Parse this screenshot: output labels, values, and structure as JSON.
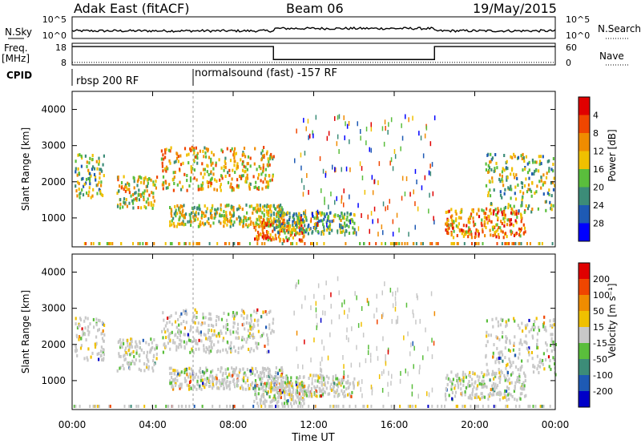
{
  "header": {
    "station": "Adak East (fitACF)",
    "beam": "Beam 06",
    "date": "19/May/2015"
  },
  "chart_data": [
    {
      "type": "line",
      "name": "noise-panel",
      "left_label": "N.Sky",
      "right_label": "N.Search",
      "left_ticks": [
        "10^5",
        "10^0"
      ],
      "right_ticks": [
        "10^5",
        "10^0"
      ]
    },
    {
      "type": "line",
      "name": "frequency-panel",
      "left_label_line1": "Freq.",
      "left_label_line2": "[MHz]",
      "left_ticks": [
        "18",
        "8"
      ],
      "right_label": "Nave",
      "right_ticks": [
        "60",
        "0"
      ],
      "freq_steps": [
        {
          "from": 0,
          "to": 10,
          "mhz": 16.5
        },
        {
          "from": 10,
          "to": 18,
          "mhz": 10.5
        },
        {
          "from": 18,
          "to": 24,
          "mhz": 16.5
        }
      ],
      "nave_level": 7
    },
    {
      "type": "table",
      "name": "cpid-panel",
      "label": "CPID",
      "segments": [
        {
          "start_hour": 0,
          "text": "rbsp 200 RF"
        },
        {
          "start_hour": 6,
          "text": "normalsound (fast) -157 RF"
        }
      ]
    },
    {
      "type": "heatmap",
      "name": "power-panel",
      "ylabel": "Slant Range [km]",
      "yticks": [
        1000,
        2000,
        3000,
        4000
      ],
      "ylim": [
        200,
        4500
      ],
      "xlim": [
        0,
        24
      ],
      "colorbar_label": "Power [dB]",
      "colorbar_ticks": [
        "4",
        "8",
        "12",
        "16",
        "20",
        "24",
        "28"
      ],
      "colors": [
        "#0000ff",
        "#1e5ab4",
        "#3c8c78",
        "#5abe3c",
        "#f0c000",
        "#f08c00",
        "#f04600",
        "#e00000"
      ],
      "echo_regions": [
        {
          "t0": 0.1,
          "t1": 1.6,
          "r0": 1600,
          "r1": 2800,
          "level": 0.45
        },
        {
          "t0": 2.2,
          "t1": 4.2,
          "r0": 1300,
          "r1": 2200,
          "level": 0.55
        },
        {
          "t0": 4.4,
          "t1": 10.0,
          "r0": 1800,
          "r1": 3000,
          "level": 0.6
        },
        {
          "t0": 4.8,
          "t1": 10.5,
          "r0": 800,
          "r1": 1400,
          "level": 0.5
        },
        {
          "t0": 9.0,
          "t1": 11.5,
          "r0": 400,
          "r1": 1000,
          "level": 0.7
        },
        {
          "t0": 10.0,
          "t1": 14.0,
          "r0": 600,
          "r1": 1200,
          "level": 0.4
        },
        {
          "t0": 18.5,
          "t1": 22.5,
          "r0": 500,
          "r1": 1300,
          "level": 0.7
        },
        {
          "t0": 20.5,
          "t1": 24.0,
          "r0": 1200,
          "r1": 2800,
          "level": 0.45
        }
      ]
    },
    {
      "type": "heatmap",
      "name": "velocity-panel",
      "ylabel": "Slant Range [km]",
      "yticks": [
        1000,
        2000,
        3000,
        4000
      ],
      "ylim": [
        200,
        4500
      ],
      "xlim": [
        0,
        24
      ],
      "colorbar_label": "Velocity [m s⁻¹]",
      "colorbar_ticks": [
        "200",
        "100",
        "50",
        "15",
        "-15",
        "-50",
        "-100",
        "-200"
      ],
      "colors": [
        "#0000c8",
        "#1e5ab4",
        "#3c8c78",
        "#5abe3c",
        "#c8c8c8",
        "#f0c000",
        "#f08c00",
        "#f04600",
        "#e00000"
      ],
      "echo_regions": [
        {
          "t0": 0.1,
          "t1": 1.6,
          "r0": 1600,
          "r1": 2800,
          "level": 0.5
        },
        {
          "t0": 2.2,
          "t1": 4.2,
          "r0": 1300,
          "r1": 2200,
          "level": 0.35
        },
        {
          "t0": 4.4,
          "t1": 10.0,
          "r0": 1800,
          "r1": 3000,
          "level": 0.5
        },
        {
          "t0": 4.8,
          "t1": 10.5,
          "r0": 800,
          "r1": 1400,
          "level": 0.5
        },
        {
          "t0": 9.0,
          "t1": 11.5,
          "r0": 400,
          "r1": 1000,
          "level": 0.5
        },
        {
          "t0": 10.0,
          "t1": 14.0,
          "r0": 600,
          "r1": 1200,
          "level": 0.35
        },
        {
          "t0": 18.5,
          "t1": 22.5,
          "r0": 500,
          "r1": 1300,
          "level": 0.5
        },
        {
          "t0": 20.5,
          "t1": 24.0,
          "r0": 1200,
          "r1": 2800,
          "level": 0.5
        }
      ]
    }
  ],
  "x_axis": {
    "ticks": [
      "00:00",
      "04:00",
      "08:00",
      "12:00",
      "16:00",
      "20:00",
      "00:00"
    ],
    "label": "Time UT"
  }
}
